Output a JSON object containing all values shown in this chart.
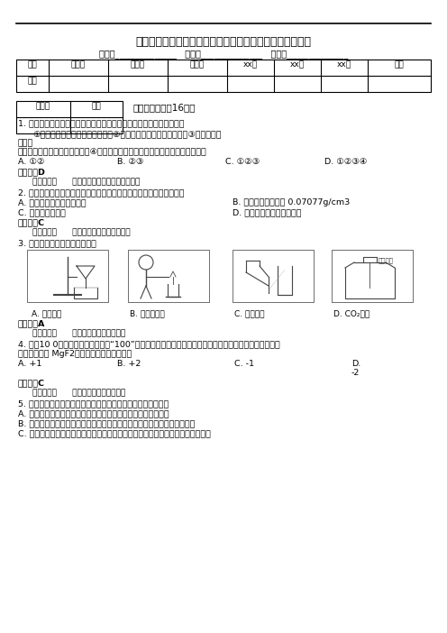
{
  "title": "初中化学江苏省南京市溧水县级化学上学期期末考试考试题",
  "subtitle": "姓名：______________   年级：______________   学号：______________",
  "table1_headers": [
    "题型",
    "选择题",
    "填空题",
    "简答题",
    "xx题",
    "xx题",
    "xx题",
    "总分"
  ],
  "table1_row": [
    "得分",
    "",
    "",
    "",
    "",
    "",
    "",
    ""
  ],
  "reviewer_label": "评卷人",
  "score_label": "得分",
  "section1_title": "一、选择题（全16题）",
  "q1_text": "1. 环境问题已成为制约社会发展和进步的严重问题。下列有几种说法：",
  "q1_sub": "①臭氧层的主要作用是吸收紫外线②温室效应将导致全球气候变暖③酸雨主要是",
  "q1_sub2": "由含硫",
  "q1_sub3": "的氧化物和氮的氧化物污染所致④汽车排放的尾气会造成空气污染。其中正确的是",
  "q1_opts": [
    "A. ①②",
    "B. ②③",
    "C. ①②③",
    "D. ①②③④"
  ],
  "q1_ans": "【答案】D",
  "q1_diff": "难度：容易      知识点：我们周围空气单元测试",
  "q2_text": "2. 液氢是重要的高能低温液体火箭燃料。下列说法中属于化学性质的是",
  "q2_optA": "A. 液氢是无色无臭透明液体",
  "q2_optB": "B. 液氢永点时密度为 0.07077g/cm3",
  "q2_optC": "C. 液氢具有可燃性",
  "q2_optD": "D. 液氢燃烧产生淡蓝色火焰",
  "q2_ans": "【答案】C",
  "q2_diff": "难度：基础      知识点：物质的变化和性质",
  "q3_text": "3. 下列图示的实验操作正确的是",
  "q3_labels": [
    "A. 过滤液体",
    "B. 息灭酒精灯",
    "C. 倘倒液体",
    "D. CO₂验满"
  ],
  "q3_ans": "【答案】A",
  "q3_diff": "难度：基础      知识点：走进化学实验室",
  "q4_text": "4. 面倶10 0元的新版人民币的数字“100”采用光变色防伪油墨印刷，垂直看为绻色，倾斜看为蓝色。在防",
  "q4_text2": "伪油墨中含有 MgF2，其中氟元素的化合价为",
  "q4_optA": "A. +1",
  "q4_optB": "B. +2",
  "q4_optC": "C. -1",
  "q4_optD": "D.",
  "q4_optD2": "-2",
  "q4_ans": "【答案】C",
  "q4_diff": "难度：容易      知识点：化学式与化合价",
  "q5_text": "5. 燃烧是生活中的一种现象。下列有关燃烧现象的说法错误的是",
  "q5_optA": "A. 硫在氧气和在空气中燃烧现象不一样，是因为氧气的含量不同",
  "q5_optB": "B. 将燃着的木柴架空，则燃烧会更旺，是因为增大了木柴与氧气的接触面积",
  "q5_optC": "C. 蜡烛一吹就灭，是因为空气的流动而带走了热量，使温度降至蜡烛的着火点以下",
  "bg_color": "#ffffff"
}
